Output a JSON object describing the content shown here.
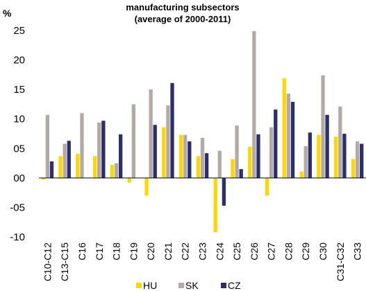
{
  "chart_data": {
    "type": "bar",
    "title_lines": [
      "manufacturing subsectors",
      "(average of 2000-2011)"
    ],
    "ylabel": "%",
    "ylim": [
      -10,
      25
    ],
    "yticks": [
      25,
      20,
      15,
      10,
      5,
      0,
      -5,
      -10
    ],
    "ytick_labels": [
      "25",
      "20",
      "15",
      "10",
      "05",
      "00",
      "-05",
      "-10"
    ],
    "categories": [
      "C10-C12",
      "C13-C15",
      "C16",
      "C17",
      "C18",
      "C19",
      "C20",
      "C21",
      "C22",
      "C23",
      "C24",
      "C25",
      "C26",
      "C27",
      "C28",
      "C29",
      "C30",
      "C31-C32",
      "C33"
    ],
    "series": [
      {
        "name": "HU",
        "color": "#ffd700",
        "values": [
          -0.3,
          3.7,
          4.1,
          3.7,
          2.2,
          -0.8,
          -3.0,
          8.6,
          7.3,
          3.7,
          -9.2,
          3.2,
          5.3,
          -3.0,
          16.9,
          1.1,
          7.3,
          7.0,
          3.2
        ]
      },
      {
        "name": "SK",
        "color": "#b4a9a4",
        "values": [
          10.7,
          5.8,
          11.0,
          9.4,
          2.5,
          12.5,
          15.0,
          12.3,
          7.3,
          6.8,
          4.6,
          8.9,
          24.9,
          8.6,
          14.3,
          5.4,
          17.4,
          12.1,
          6.2
        ]
      },
      {
        "name": "CZ",
        "color": "#2b2f6e",
        "values": [
          2.8,
          6.3,
          null,
          9.7,
          7.4,
          null,
          9.0,
          16.1,
          6.2,
          4.2,
          -4.7,
          1.5,
          7.4,
          11.6,
          12.9,
          7.7,
          10.7,
          7.5,
          5.8
        ]
      }
    ],
    "grid": false,
    "legend_position": "bottom"
  }
}
